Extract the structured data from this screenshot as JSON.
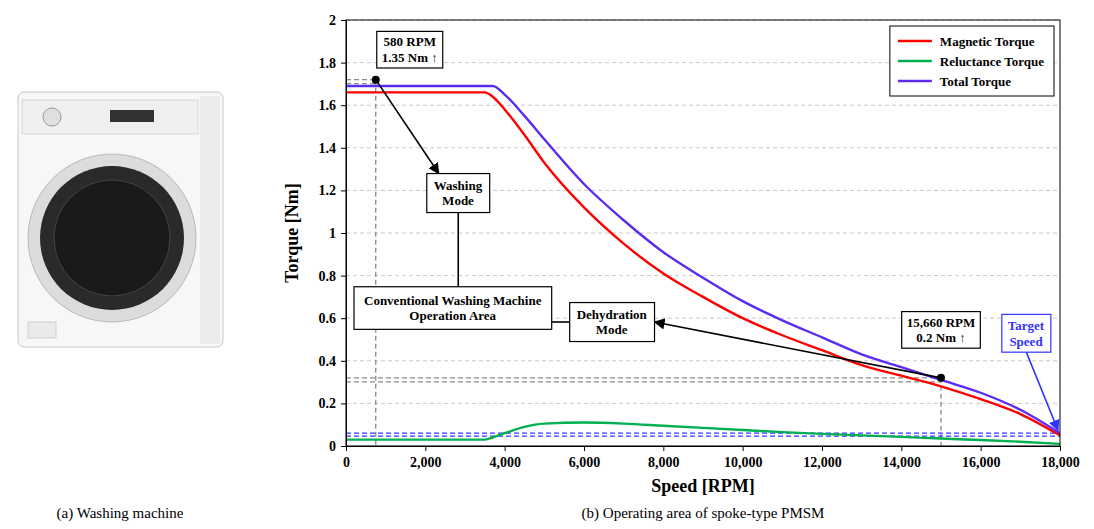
{
  "captions": {
    "a": "(a) Washing machine",
    "b": "(b) Operating area of spoke-type PMSM"
  },
  "chart_data": {
    "type": "line",
    "xlabel": "Speed [RPM]",
    "ylabel": "Torque [Nm]",
    "x": [
      0,
      1000,
      2000,
      3000,
      3500,
      3700,
      4000,
      4500,
      5000,
      6000,
      7000,
      8000,
      9000,
      10000,
      11000,
      12000,
      13000,
      14000,
      15000,
      16000,
      17000,
      18000
    ],
    "series": [
      {
        "name": "Magnetic Torque",
        "color": "#ff0000",
        "values": [
          1.66,
          1.66,
          1.66,
          1.66,
          1.66,
          1.64,
          1.58,
          1.46,
          1.33,
          1.12,
          0.95,
          0.81,
          0.7,
          0.6,
          0.52,
          0.45,
          0.38,
          0.33,
          0.28,
          0.22,
          0.15,
          0.05
        ]
      },
      {
        "name": "Reluctance Torque",
        "color": "#00b050",
        "values": [
          0.03,
          0.03,
          0.03,
          0.03,
          0.03,
          0.04,
          0.06,
          0.09,
          0.105,
          0.11,
          0.105,
          0.095,
          0.085,
          0.075,
          0.065,
          0.057,
          0.05,
          0.043,
          0.035,
          0.028,
          0.02,
          0.01
        ]
      },
      {
        "name": "Total Torque",
        "color": "#5b2cf0",
        "values": [
          1.69,
          1.69,
          1.69,
          1.69,
          1.69,
          1.69,
          1.65,
          1.55,
          1.44,
          1.23,
          1.06,
          0.91,
          0.79,
          0.68,
          0.59,
          0.51,
          0.43,
          0.37,
          0.31,
          0.25,
          0.17,
          0.06
        ]
      }
    ],
    "xlim": [
      0,
      18000
    ],
    "xticks": [
      {
        "value": 0,
        "label": "0"
      },
      {
        "value": 2000,
        "label": "2,000"
      },
      {
        "value": 4000,
        "label": "4,000"
      },
      {
        "value": 6000,
        "label": "6,000"
      },
      {
        "value": 8000,
        "label": "8,000"
      },
      {
        "value": 10000,
        "label": "10,000"
      },
      {
        "value": 12000,
        "label": "12,000"
      },
      {
        "value": 14000,
        "label": "14,000"
      },
      {
        "value": 16000,
        "label": "16,000"
      },
      {
        "value": 18000,
        "label": "18,000"
      }
    ],
    "ylim": [
      0,
      2
    ],
    "yticks": [
      0,
      0.2,
      0.4,
      0.6,
      0.8,
      1,
      1.2,
      1.4,
      1.6,
      1.8,
      2
    ],
    "grid": true,
    "legend": "upper right",
    "annotations": [
      {
        "lines": [
          "580 RPM",
          "1.35 Nm ↑"
        ],
        "x": 750,
        "y": 1.72
      },
      {
        "lines": [
          "15,660 RPM",
          "0.2 Nm ↑"
        ],
        "x": 15000,
        "y": 0.32
      },
      {
        "text": "Washing Mode"
      },
      {
        "text": "Conventional Washing Machine Operation Area"
      },
      {
        "text": "Dehydration Mode"
      },
      {
        "text": "Target Speed",
        "x": 18000,
        "y": 0.06
      }
    ]
  }
}
